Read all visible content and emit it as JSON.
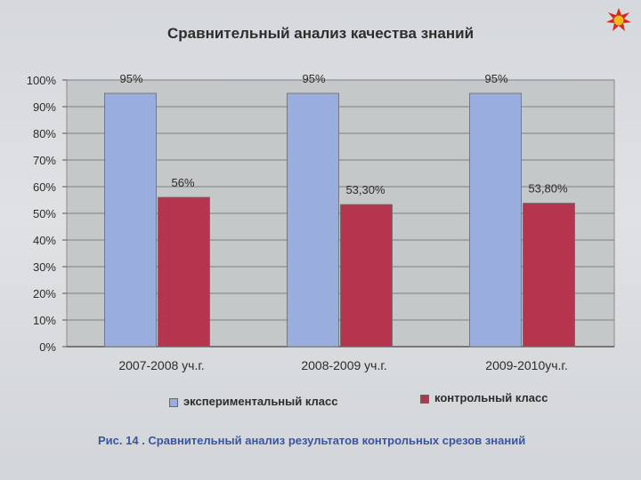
{
  "header": {
    "logo_icon": "red-flower-logo-icon"
  },
  "chart_data": {
    "type": "bar",
    "title": "Сравнительный анализ качества знаний",
    "categories": [
      "2007-2008 уч.г.",
      "2008-2009 уч.г.",
      "2009-2010уч.г."
    ],
    "series": [
      {
        "name": "экспериментальный класс",
        "values": [
          95,
          95,
          95
        ],
        "labels": [
          "95%",
          "95%",
          "95%"
        ],
        "color": "#9aaede"
      },
      {
        "name": "контрольный класс",
        "values": [
          56,
          53.3,
          53.8
        ],
        "labels": [
          "56%",
          "53,30%",
          "53,80%"
        ],
        "color": "#b5344e"
      }
    ],
    "ylim": [
      0,
      100
    ],
    "yticks": [
      "0%",
      "10%",
      "20%",
      "30%",
      "40%",
      "50%",
      "60%",
      "70%",
      "80%",
      "90%",
      "100%"
    ],
    "grid": true,
    "legend_position": "bottom",
    "plot_background": "#c4c8c8"
  },
  "caption": "Рис. 14 . Сравнительный анализ результатов  контрольных срезов знаний"
}
